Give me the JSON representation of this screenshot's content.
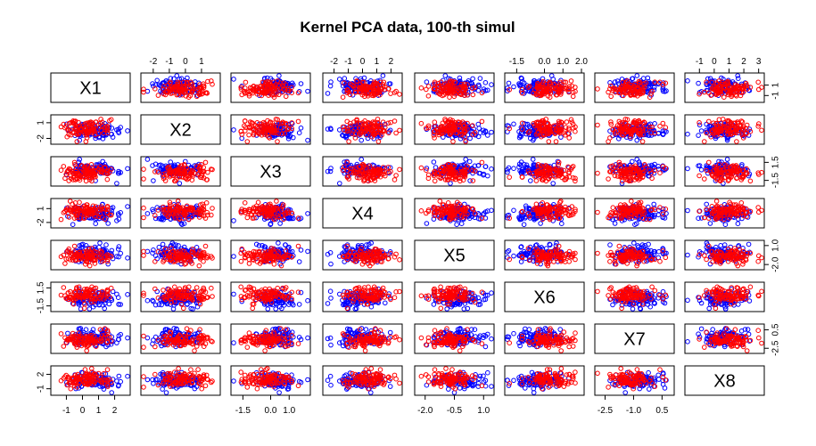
{
  "chart_data": {
    "type": "scatter",
    "subtype": "scatterplot-matrix",
    "title": "Kernel PCA data, 100-th simul",
    "variables": [
      "X1",
      "X2",
      "X3",
      "X4",
      "X5",
      "X6",
      "X7",
      "X8"
    ],
    "groups": [
      {
        "color": "#0000ff"
      },
      {
        "color": "#ff0000"
      }
    ],
    "points_per_group": 100,
    "ranges": [
      [
        -1.8,
        2.8
      ],
      [
        -2.6,
        2.0
      ],
      [
        -2.0,
        2.0
      ],
      [
        -2.6,
        2.6
      ],
      [
        -2.4,
        1.4
      ],
      [
        -2.0,
        2.0
      ],
      [
        -2.9,
        1.0
      ],
      [
        -1.8,
        3.2
      ]
    ],
    "axes": {
      "1": {
        "side": "bottom",
        "ticks": [
          "-1",
          "0",
          "1",
          "2"
        ],
        "values": [
          -1,
          0,
          1,
          2
        ]
      },
      "2": {
        "side": "top",
        "ticks": [
          "-2",
          "-1",
          "0",
          "1"
        ],
        "values": [
          -2,
          -1,
          0,
          1
        ]
      },
      "3": {
        "side": "bottom",
        "ticks": [
          "-1.5",
          "0.0",
          "1.0"
        ],
        "values": [
          -1.5,
          0.0,
          1.0
        ]
      },
      "4": {
        "side": "top",
        "ticks": [
          "-2",
          "-1",
          "0",
          "1",
          "2"
        ],
        "values": [
          -2,
          -1,
          0,
          1,
          2
        ]
      },
      "5": {
        "side": "bottom",
        "ticks": [
          "-2.0",
          "-0.5",
          "1.0"
        ],
        "values": [
          -2.0,
          -0.5,
          1.0
        ]
      },
      "6": {
        "side": "top",
        "ticks": [
          "-1.5",
          "0.0",
          "1.0",
          "2.0"
        ],
        "values": [
          -1.5,
          0.0,
          1.0,
          2.0
        ]
      },
      "7": {
        "side": "bottom",
        "ticks": [
          "-2.5",
          "-1.0",
          "0.5"
        ],
        "values": [
          -2.5,
          -1.0,
          0.5
        ]
      },
      "8": {
        "side": "top",
        "ticks": [
          "-1",
          "0",
          "1",
          "2",
          "3"
        ],
        "values": [
          -1,
          0,
          1,
          2,
          3
        ]
      }
    },
    "yaxes": {
      "1": {
        "side": "right",
        "ticks": [
          "-1",
          "1"
        ],
        "values": [
          -1,
          1
        ]
      },
      "2": {
        "side": "left",
        "ticks": [
          "-2",
          "1"
        ],
        "values": [
          -2,
          1
        ]
      },
      "3": {
        "side": "right",
        "ticks": [
          "-1.5",
          "1.5"
        ],
        "values": [
          -1.5,
          1.5
        ]
      },
      "4": {
        "side": "left",
        "ticks": [
          "-2",
          "1"
        ],
        "values": [
          -2,
          1
        ]
      },
      "5": {
        "side": "right",
        "ticks": [
          "-2.0",
          "1.0"
        ],
        "values": [
          -2.0,
          1.0
        ]
      },
      "6": {
        "side": "left",
        "ticks": [
          "-1.5",
          "1.5"
        ],
        "values": [
          -1.5,
          1.5
        ]
      },
      "7": {
        "side": "right",
        "ticks": [
          "-2.5",
          "0.5"
        ],
        "values": [
          -2.5,
          0.5
        ]
      },
      "8": {
        "side": "left",
        "ticks": [
          "-1",
          "2"
        ],
        "values": [
          -1,
          2
        ]
      }
    },
    "grid": false,
    "legend": "none"
  }
}
